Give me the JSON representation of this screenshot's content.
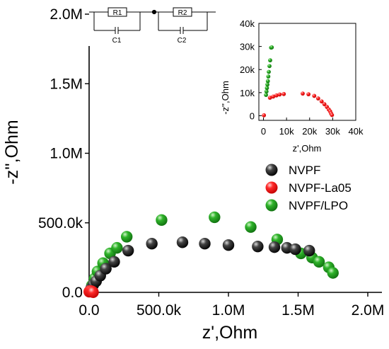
{
  "chart_data": [
    {
      "type": "scatter",
      "title": "",
      "xlabel": "z',Ohm",
      "ylabel": "-z'',Ohm",
      "xlim": [
        0,
        2000000
      ],
      "ylim": [
        0,
        2000000
      ],
      "xticks": [
        {
          "value": 0,
          "label": "0.0"
        },
        {
          "value": 500000,
          "label": "500.0k"
        },
        {
          "value": 1000000,
          "label": "1.0M"
        },
        {
          "value": 1500000,
          "label": "1.5M"
        },
        {
          "value": 2000000,
          "label": "2.0M"
        }
      ],
      "yticks": [
        {
          "value": 0,
          "label": "0.0"
        },
        {
          "value": 500000,
          "label": "500.0k"
        },
        {
          "value": 1000000,
          "label": "1.0M"
        },
        {
          "value": 1500000,
          "label": "1.5M"
        },
        {
          "value": 2000000,
          "label": "2.0M"
        }
      ],
      "legend_position": "right",
      "series": [
        {
          "name": "NVPF",
          "color": "#000000",
          "x": [
            5000,
            15000,
            30000,
            50000,
            80000,
            120000,
            180000,
            280000,
            450000,
            670000,
            830000,
            1000000,
            1210000,
            1330000,
            1420000,
            1480000,
            1580000
          ],
          "y": [
            10000,
            30000,
            55000,
            80000,
            120000,
            170000,
            220000,
            300000,
            350000,
            360000,
            350000,
            340000,
            330000,
            325000,
            320000,
            310000,
            300000
          ]
        },
        {
          "name": "NVPF-La05",
          "color": "#ff0000",
          "x": [
            1000,
            4000,
            8000,
            12000,
            18000,
            24000,
            28000
          ],
          "y": [
            5000,
            9000,
            10000,
            9000,
            8000,
            5000,
            1000
          ]
        },
        {
          "name": "NVPF/LPO",
          "color": "#22a322",
          "x": [
            10000,
            20000,
            40000,
            60000,
            100000,
            150000,
            200000,
            270000,
            520000,
            900000,
            1160000,
            1350000,
            1520000,
            1600000,
            1650000,
            1720000,
            1750000
          ],
          "y": [
            15000,
            50000,
            100000,
            150000,
            210000,
            280000,
            320000,
            400000,
            520000,
            540000,
            470000,
            380000,
            280000,
            250000,
            220000,
            180000,
            140000
          ]
        }
      ]
    },
    {
      "type": "scatter",
      "title": "",
      "xlabel": "z',Ohm",
      "ylabel": "-z'',Ohm",
      "xlim": [
        -2000,
        40000
      ],
      "ylim": [
        -2000,
        40000
      ],
      "xticks": [
        {
          "value": 0,
          "label": "0"
        },
        {
          "value": 10000,
          "label": "10k"
        },
        {
          "value": 20000,
          "label": "20k"
        },
        {
          "value": 30000,
          "label": "30k"
        },
        {
          "value": 40000,
          "label": "40k"
        }
      ],
      "yticks": [
        {
          "value": 0,
          "label": "0"
        },
        {
          "value": 10000,
          "label": "10k"
        },
        {
          "value": 20000,
          "label": "20k"
        },
        {
          "value": 30000,
          "label": "30k"
        },
        {
          "value": 40000,
          "label": "40k"
        }
      ],
      "series": [
        {
          "name": "NVPF-La05",
          "color": "#ff0000",
          "x": [
            200,
            2800,
            4200,
            5600,
            7000,
            8800,
            17000,
            19500,
            22000,
            23700,
            25200,
            26400,
            27500,
            28300,
            28900,
            29300,
            29700
          ],
          "y": [
            200,
            7800,
            8300,
            8800,
            9200,
            9400,
            9600,
            9300,
            8600,
            7500,
            6200,
            5000,
            3800,
            2700,
            1900,
            1000,
            300
          ]
        },
        {
          "name": "NVPF/LPO",
          "color": "#22a322",
          "x": [
            1100,
            1300,
            1500,
            1700,
            1900,
            2100,
            2300,
            2600,
            2900,
            3300,
            3600
          ],
          "y": [
            9000,
            10500,
            12000,
            13500,
            15000,
            17000,
            19000,
            21500,
            24000,
            29500,
            29600
          ]
        }
      ]
    }
  ],
  "circuit": {
    "r1_label": "R1",
    "r2_label": "R2",
    "c1_label": "C1",
    "c2_label": "C2"
  }
}
